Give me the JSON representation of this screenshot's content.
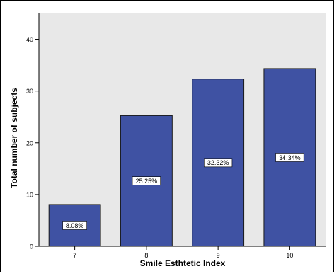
{
  "chart_data": {
    "type": "bar",
    "title": "",
    "xlabel": "Smile Esthtetic Index",
    "ylabel": "Total number of subjects",
    "categories": [
      "7",
      "8",
      "9",
      "10"
    ],
    "values": [
      8.08,
      25.25,
      32.32,
      34.34
    ],
    "data_labels": [
      "8.08%",
      "25.25%",
      "32.32%",
      "34.34%"
    ],
    "ylim": [
      0,
      45
    ],
    "yticks": [
      0,
      10,
      20,
      30,
      40
    ],
    "grid": false,
    "colors": {
      "bar_fill": "#3f52a3",
      "bar_stroke": "#1a1a1a",
      "plot_background": "#e8e8e8",
      "frame": "#000000"
    }
  }
}
